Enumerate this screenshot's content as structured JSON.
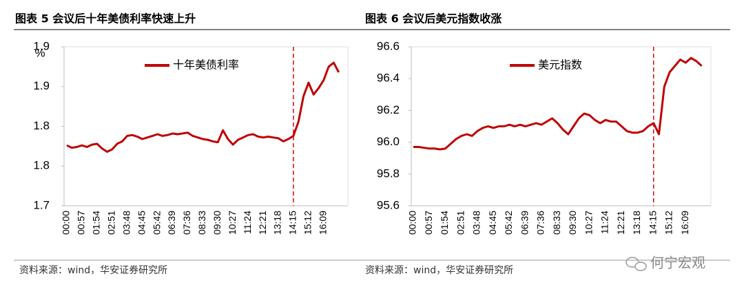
{
  "chart_data": [
    {
      "type": "line",
      "title": "图表 5 会议后十年美债利率快速上升",
      "y_label": "%",
      "source": "资料来源：wind，华安证券研究所",
      "categories": [
        "00:00",
        null,
        null,
        "00:57",
        null,
        null,
        "01:54",
        null,
        null,
        "02:51",
        null,
        null,
        "03:48",
        null,
        null,
        "04:45",
        null,
        null,
        "05:42",
        null,
        null,
        "06:39",
        null,
        null,
        "07:36",
        null,
        null,
        "08:33",
        null,
        null,
        "09:30",
        null,
        null,
        "10:27",
        null,
        null,
        "11:24",
        null,
        null,
        "12:21",
        null,
        null,
        "13:18",
        null,
        null,
        "14:15",
        null,
        null,
        "15:12",
        null,
        null,
        "16:09",
        null,
        null,
        null
      ],
      "series": [
        {
          "name": "十年美债利率",
          "color": "#c00000",
          "values": [
            1.776,
            1.773,
            1.774,
            1.776,
            1.774,
            1.777,
            1.778,
            1.772,
            1.768,
            1.771,
            1.778,
            1.781,
            1.788,
            1.789,
            1.787,
            1.784,
            1.786,
            1.788,
            1.79,
            1.788,
            1.789,
            1.791,
            1.79,
            1.791,
            1.792,
            1.788,
            1.786,
            1.784,
            1.783,
            1.781,
            1.78,
            1.795,
            1.784,
            1.777,
            1.783,
            1.786,
            1.789,
            1.79,
            1.787,
            1.786,
            1.787,
            1.786,
            1.785,
            1.781,
            1.784,
            1.788,
            1.806,
            1.838,
            1.855,
            1.84,
            1.848,
            1.858,
            1.875,
            1.88,
            1.868
          ]
        }
      ],
      "ylim": [
        1.7,
        1.9
      ],
      "yticks": [
        {
          "value": 1.7,
          "label": "1.7"
        },
        {
          "value": 1.75,
          "label": "1.8"
        },
        {
          "value": 1.8,
          "label": "1.8"
        },
        {
          "value": 1.85,
          "label": "1.9"
        },
        {
          "value": 1.9,
          "label": "1.9"
        }
      ],
      "vline_at": "14:15",
      "legend": "top"
    },
    {
      "type": "line",
      "title": "图表 6 会议后美元指数收涨",
      "source": "资料来源：wind，华安证券研究所",
      "categories": [
        "00:00",
        null,
        null,
        "00:57",
        null,
        null,
        "01:54",
        null,
        null,
        "02:51",
        null,
        null,
        "03:48",
        null,
        null,
        "04:45",
        null,
        null,
        "05:42",
        null,
        null,
        "06:39",
        null,
        null,
        "07:36",
        null,
        null,
        "08:33",
        null,
        null,
        "09:30",
        null,
        null,
        "10:27",
        null,
        null,
        "11:24",
        null,
        null,
        "12:21",
        null,
        null,
        "13:18",
        null,
        null,
        "14:15",
        null,
        null,
        "15:12",
        null,
        null,
        "16:09",
        null,
        null,
        null
      ],
      "series": [
        {
          "name": "美元指数",
          "color": "#c00000",
          "values": [
            95.97,
            95.97,
            95.965,
            95.96,
            95.96,
            95.955,
            95.96,
            95.99,
            96.02,
            96.04,
            96.05,
            96.04,
            96.07,
            96.09,
            96.1,
            96.09,
            96.1,
            96.1,
            96.11,
            96.1,
            96.11,
            96.1,
            96.11,
            96.12,
            96.11,
            96.13,
            96.15,
            96.12,
            96.08,
            96.05,
            96.1,
            96.15,
            96.18,
            96.17,
            96.14,
            96.12,
            96.14,
            96.13,
            96.13,
            96.1,
            96.07,
            96.06,
            96.06,
            96.07,
            96.1,
            96.12,
            96.05,
            96.35,
            96.44,
            96.48,
            96.52,
            96.5,
            96.53,
            96.51,
            96.48
          ]
        }
      ],
      "ylim": [
        95.6,
        96.6
      ],
      "yticks": [
        {
          "value": 95.6,
          "label": "95.6"
        },
        {
          "value": 95.8,
          "label": "95.8"
        },
        {
          "value": 96,
          "label": "96.0"
        },
        {
          "value": 96.2,
          "label": "96.2"
        },
        {
          "value": 96.4,
          "label": "96.4"
        },
        {
          "value": 96.6,
          "label": "96.6"
        }
      ],
      "vline_at": "14:15",
      "legend": "top"
    }
  ],
  "watermark": "何宁宏观"
}
